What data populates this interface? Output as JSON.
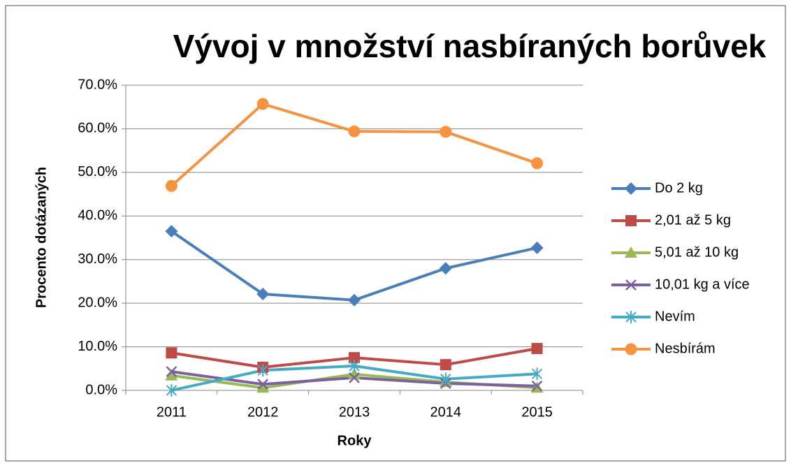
{
  "chart_data": {
    "type": "line",
    "title": "Vývoj v množství nasbíraných borůvek",
    "x_label": "Roky",
    "y_label": "Procento dotázaných",
    "categories": [
      "2011",
      "2012",
      "2013",
      "2014",
      "2015"
    ],
    "ylim": [
      0,
      70
    ],
    "yticks": [
      {
        "value": 0,
        "label": "0.0%"
      },
      {
        "value": 10,
        "label": "10.0%"
      },
      {
        "value": 20,
        "label": "20.0%"
      },
      {
        "value": 30,
        "label": "30.0%"
      },
      {
        "value": 40,
        "label": "40.0%"
      },
      {
        "value": 50,
        "label": "50.0%"
      },
      {
        "value": 60,
        "label": "60.0%"
      },
      {
        "value": 70,
        "label": "70.0%"
      }
    ],
    "grid": true,
    "legend": "right",
    "series": [
      {
        "name": "Do 2 kg",
        "color": "#4a7ebb",
        "marker": "diamond",
        "values": [
          36.5,
          22.1,
          20.7,
          28.0,
          32.7
        ]
      },
      {
        "name": "2,01 až 5 kg",
        "color": "#be4b48",
        "marker": "square",
        "values": [
          8.6,
          5.3,
          7.5,
          5.9,
          9.6
        ]
      },
      {
        "name": "5,01 až 10 kg",
        "color": "#98b954",
        "marker": "triangle",
        "values": [
          3.4,
          0.6,
          3.7,
          1.9,
          0.6
        ]
      },
      {
        "name": "10,01 kg a více",
        "color": "#7d60a0",
        "marker": "x",
        "values": [
          4.3,
          1.4,
          2.9,
          1.6,
          1.0
        ]
      },
      {
        "name": "Nevím",
        "color": "#46aac5",
        "marker": "star",
        "values": [
          0,
          4.6,
          5.6,
          2.6,
          3.8
        ]
      },
      {
        "name": "Nesbírám",
        "color": "#f69240",
        "marker": "circle",
        "values": [
          46.9,
          65.7,
          59.4,
          59.3,
          52.1
        ]
      }
    ]
  }
}
